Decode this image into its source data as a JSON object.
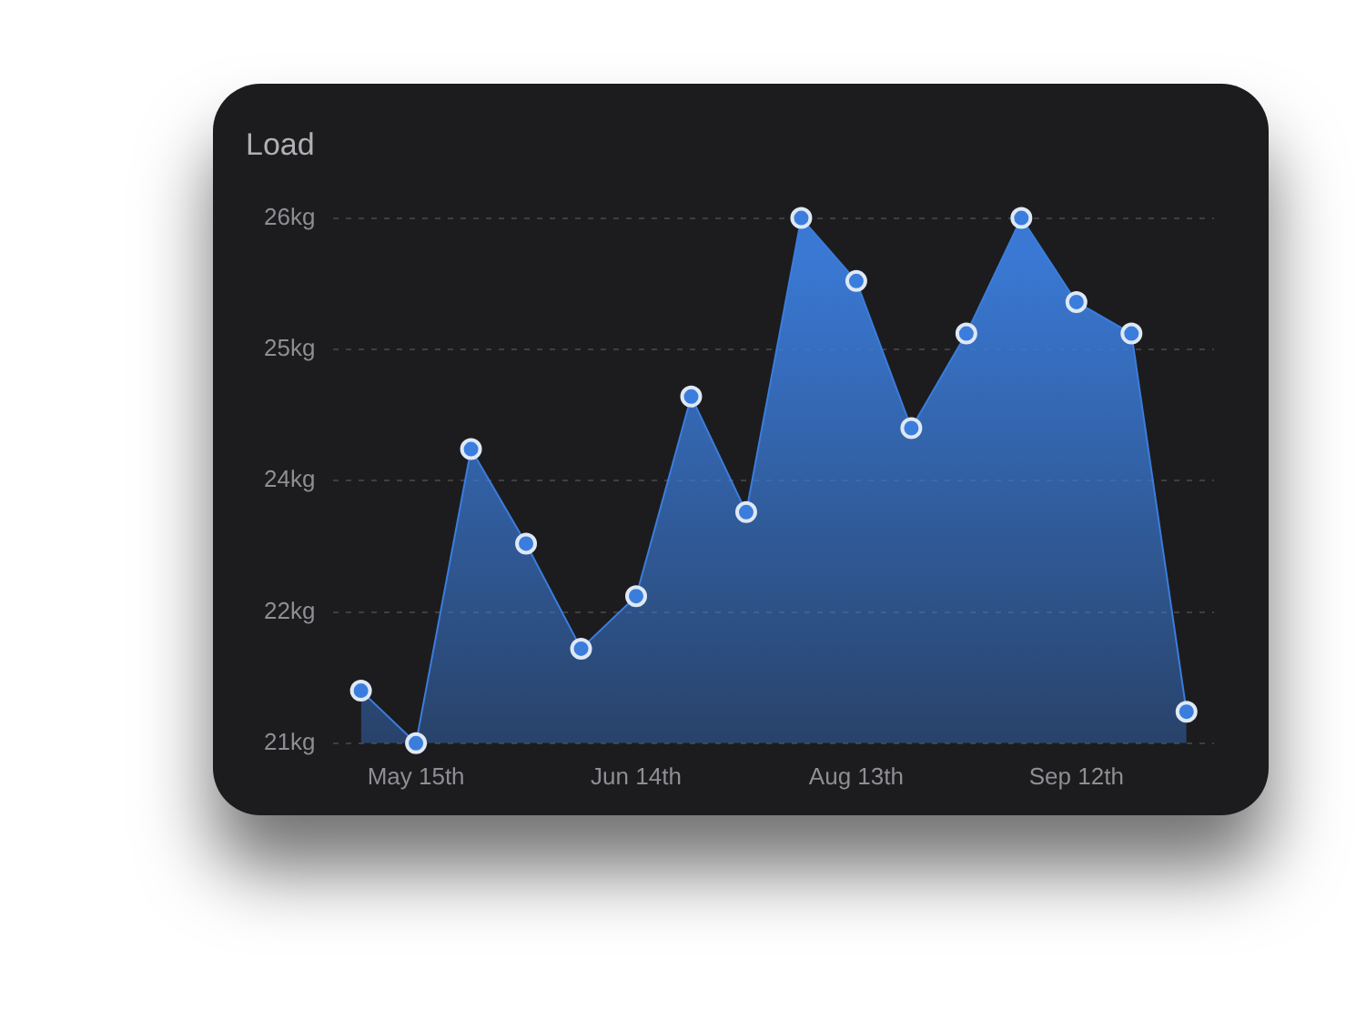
{
  "chart_data": {
    "type": "area",
    "title": "Load",
    "categories": [
      null,
      "May 15th",
      null,
      null,
      null,
      "Jun 14th",
      null,
      null,
      null,
      "Aug 13th",
      null,
      null,
      null,
      "Sep 12th",
      null,
      null
    ],
    "series": [
      {
        "color": "#3b7ddd",
        "values": [
          21.5,
          21.0,
          23.8,
          22.9,
          21.9,
          22.4,
          24.3,
          23.2,
          26.0,
          25.4,
          24.0,
          24.9,
          26.0,
          25.2,
          24.9,
          21.3
        ]
      }
    ],
    "ylim": [
      21,
      26
    ],
    "yticks": [
      {
        "value": 21,
        "label": "21kg"
      },
      {
        "value": 22.25,
        "label": "22kg"
      },
      {
        "value": 23.5,
        "label": "24kg"
      },
      {
        "value": 24.75,
        "label": "25kg"
      },
      {
        "value": 26,
        "label": "26kg"
      }
    ],
    "grid": "y",
    "marker": "circle",
    "legend": false
  }
}
